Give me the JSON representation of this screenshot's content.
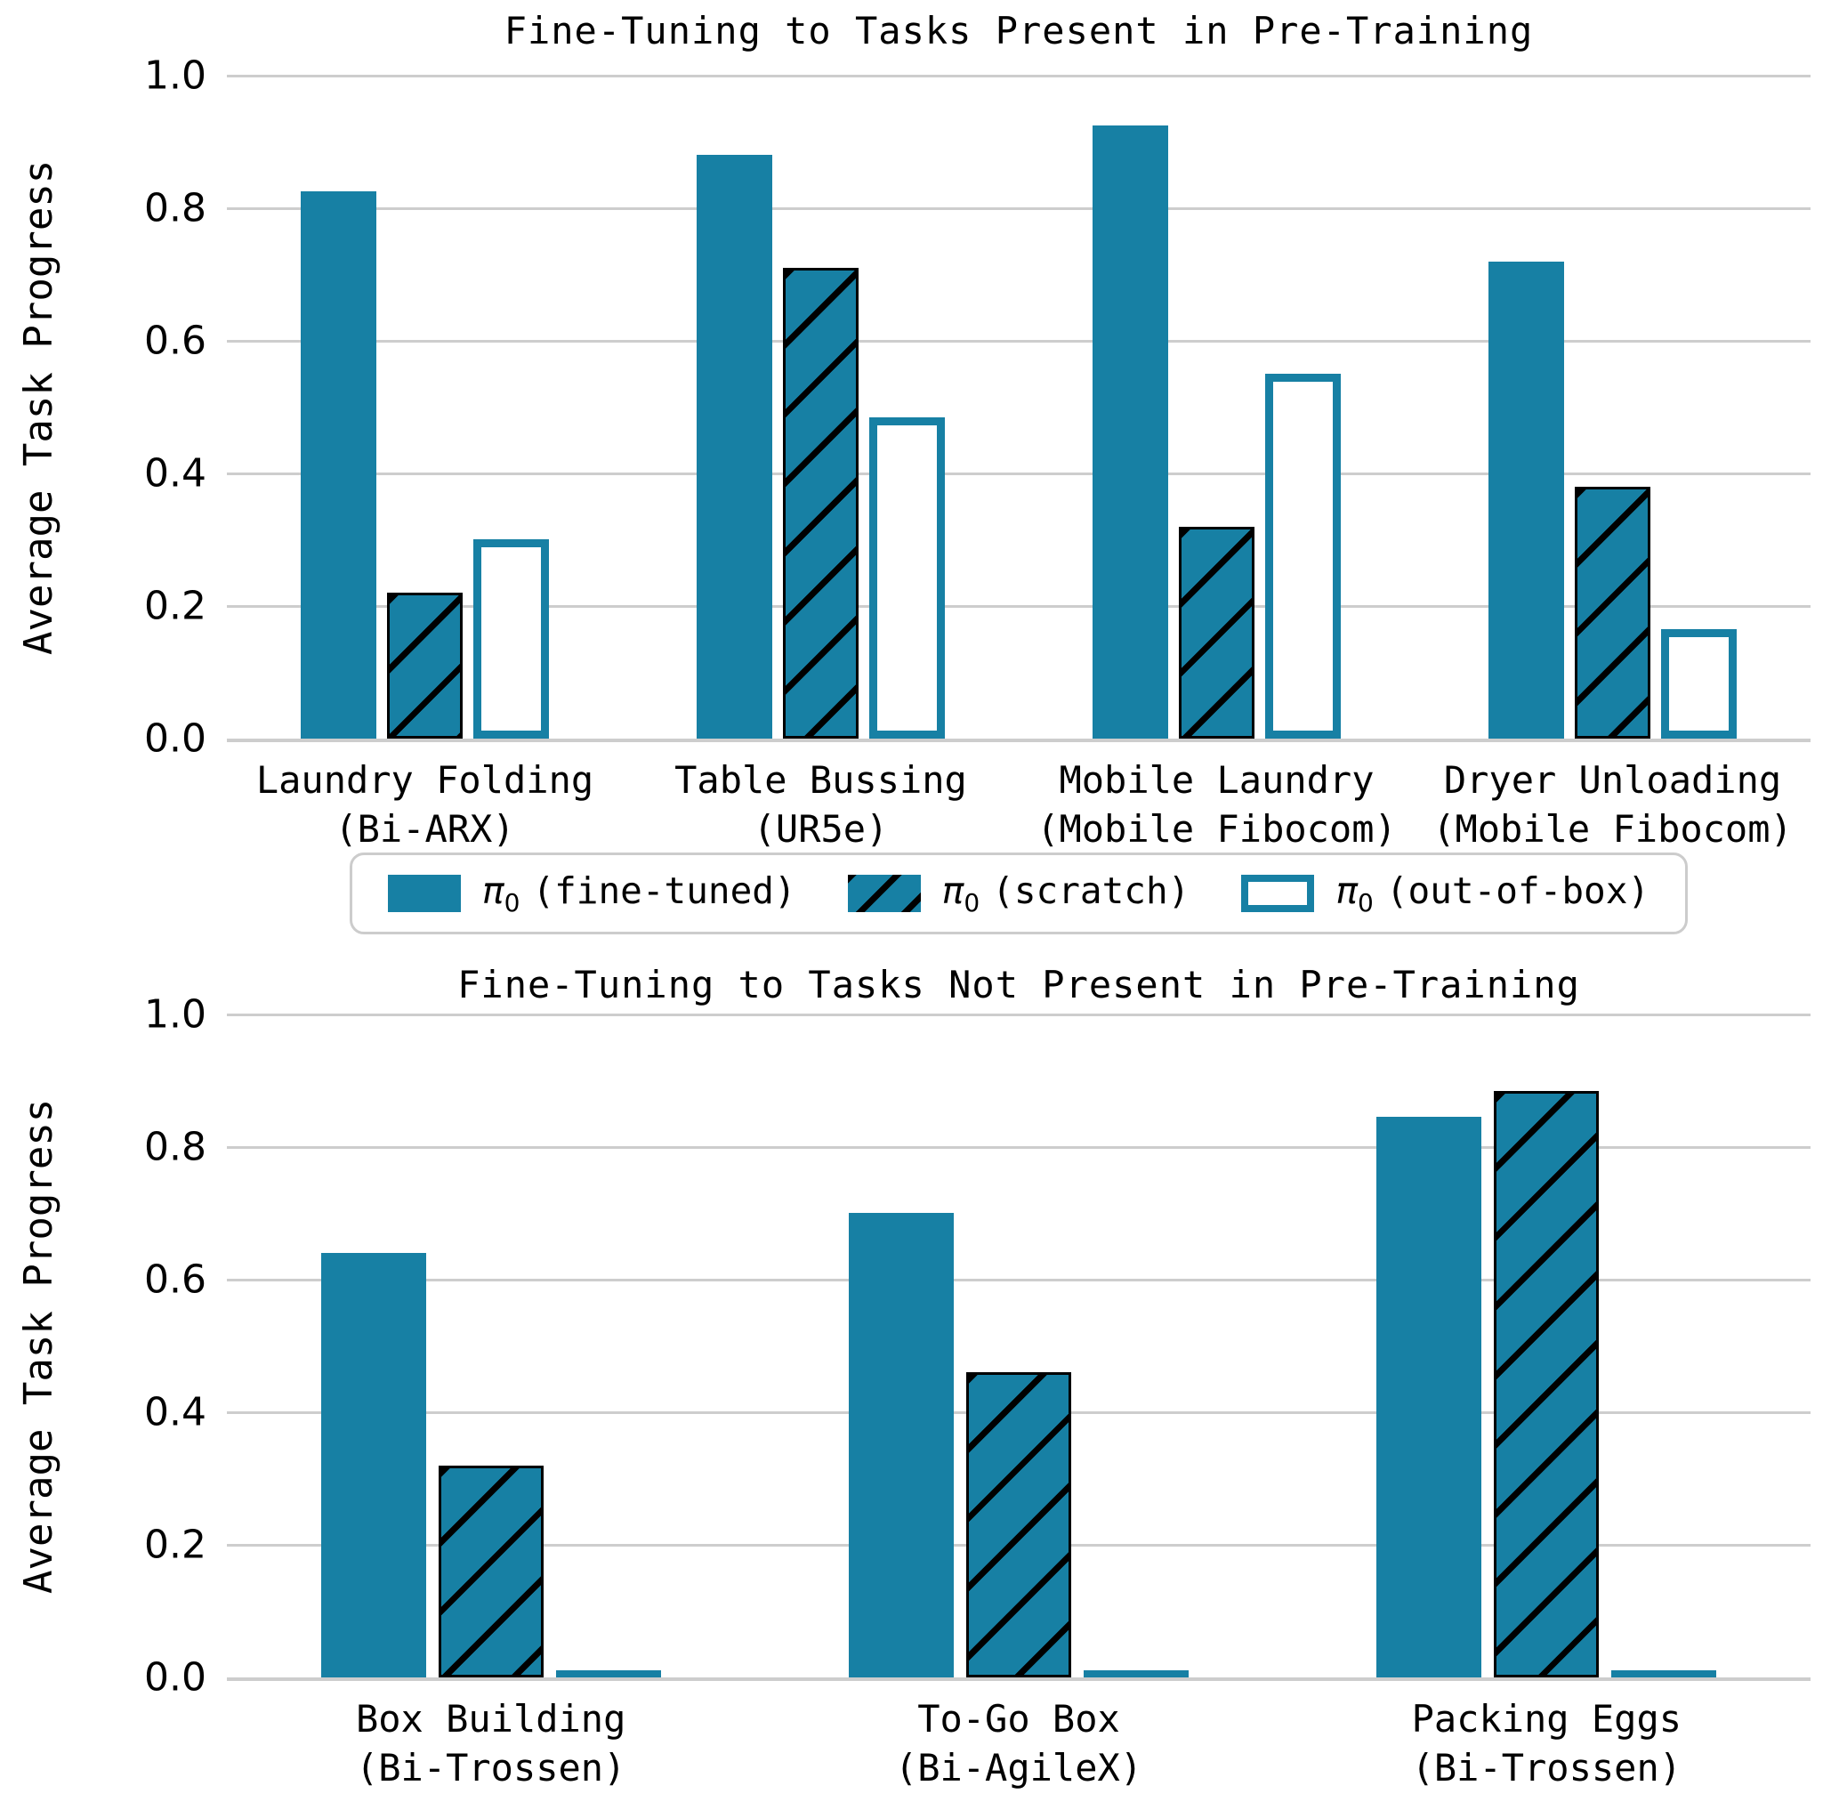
{
  "colors": {
    "bar_fill": "#1780A4",
    "hatch": "#000000",
    "gridline": "#cdcdcd",
    "legend_border": "#cccccc",
    "background": "#ffffff",
    "text": "#000000"
  },
  "legend": {
    "items": [
      {
        "pi": "π",
        "sub": "0",
        "rest": "(fine-tuned)",
        "style": "solid"
      },
      {
        "pi": "π",
        "sub": "0",
        "rest": "(scratch)",
        "style": "hatched"
      },
      {
        "pi": "π",
        "sub": "0",
        "rest": "(out-of-box)",
        "style": "outline"
      }
    ]
  },
  "chart_data": [
    {
      "type": "bar",
      "title": "Fine-Tuning to Tasks Present in Pre-Training",
      "ylabel": "Average Task Progress",
      "ylim": [
        0.0,
        1.0
      ],
      "yticks": [
        "1.0",
        "0.8",
        "0.6",
        "0.4",
        "0.2",
        "0.0"
      ],
      "grid": "horizontal",
      "legend_position": "below",
      "categories": [
        [
          "Laundry Folding",
          "(Bi-ARX)"
        ],
        [
          "Table Bussing",
          "(UR5e)"
        ],
        [
          "Mobile Laundry",
          "(Mobile Fibocom)"
        ],
        [
          "Dryer Unloading",
          "(Mobile Fibocom)"
        ]
      ],
      "series": [
        {
          "name": "π₀ (fine-tuned)",
          "style": "solid",
          "values": [
            0.825,
            0.88,
            0.925,
            0.72
          ]
        },
        {
          "name": "π₀ (scratch)",
          "style": "hatched",
          "values": [
            0.22,
            0.71,
            0.32,
            0.38
          ]
        },
        {
          "name": "π₀ (out-of-box)",
          "style": "outline",
          "values": [
            0.3,
            0.485,
            0.55,
            0.165
          ]
        }
      ]
    },
    {
      "type": "bar",
      "title": "Fine-Tuning to Tasks Not Present in Pre-Training",
      "ylabel": "Average Task Progress",
      "ylim": [
        0.0,
        1.0
      ],
      "yticks": [
        "1.0",
        "0.8",
        "0.6",
        "0.4",
        "0.2",
        "0.0"
      ],
      "grid": "horizontal",
      "legend_position": "none",
      "categories": [
        [
          "Box Building",
          "(Bi-Trossen)"
        ],
        [
          "To-Go Box",
          "(Bi-AgileX)"
        ],
        [
          "Packing Eggs",
          "(Bi-Trossen)"
        ]
      ],
      "series": [
        {
          "name": "π₀ (fine-tuned)",
          "style": "solid",
          "values": [
            0.64,
            0.7,
            0.845
          ]
        },
        {
          "name": "π₀ (scratch)",
          "style": "hatched",
          "values": [
            0.32,
            0.46,
            0.885
          ]
        },
        {
          "name": "π₀ (out-of-box)",
          "style": "outline",
          "values": [
            0.005,
            0.005,
            0.005
          ]
        }
      ]
    }
  ]
}
